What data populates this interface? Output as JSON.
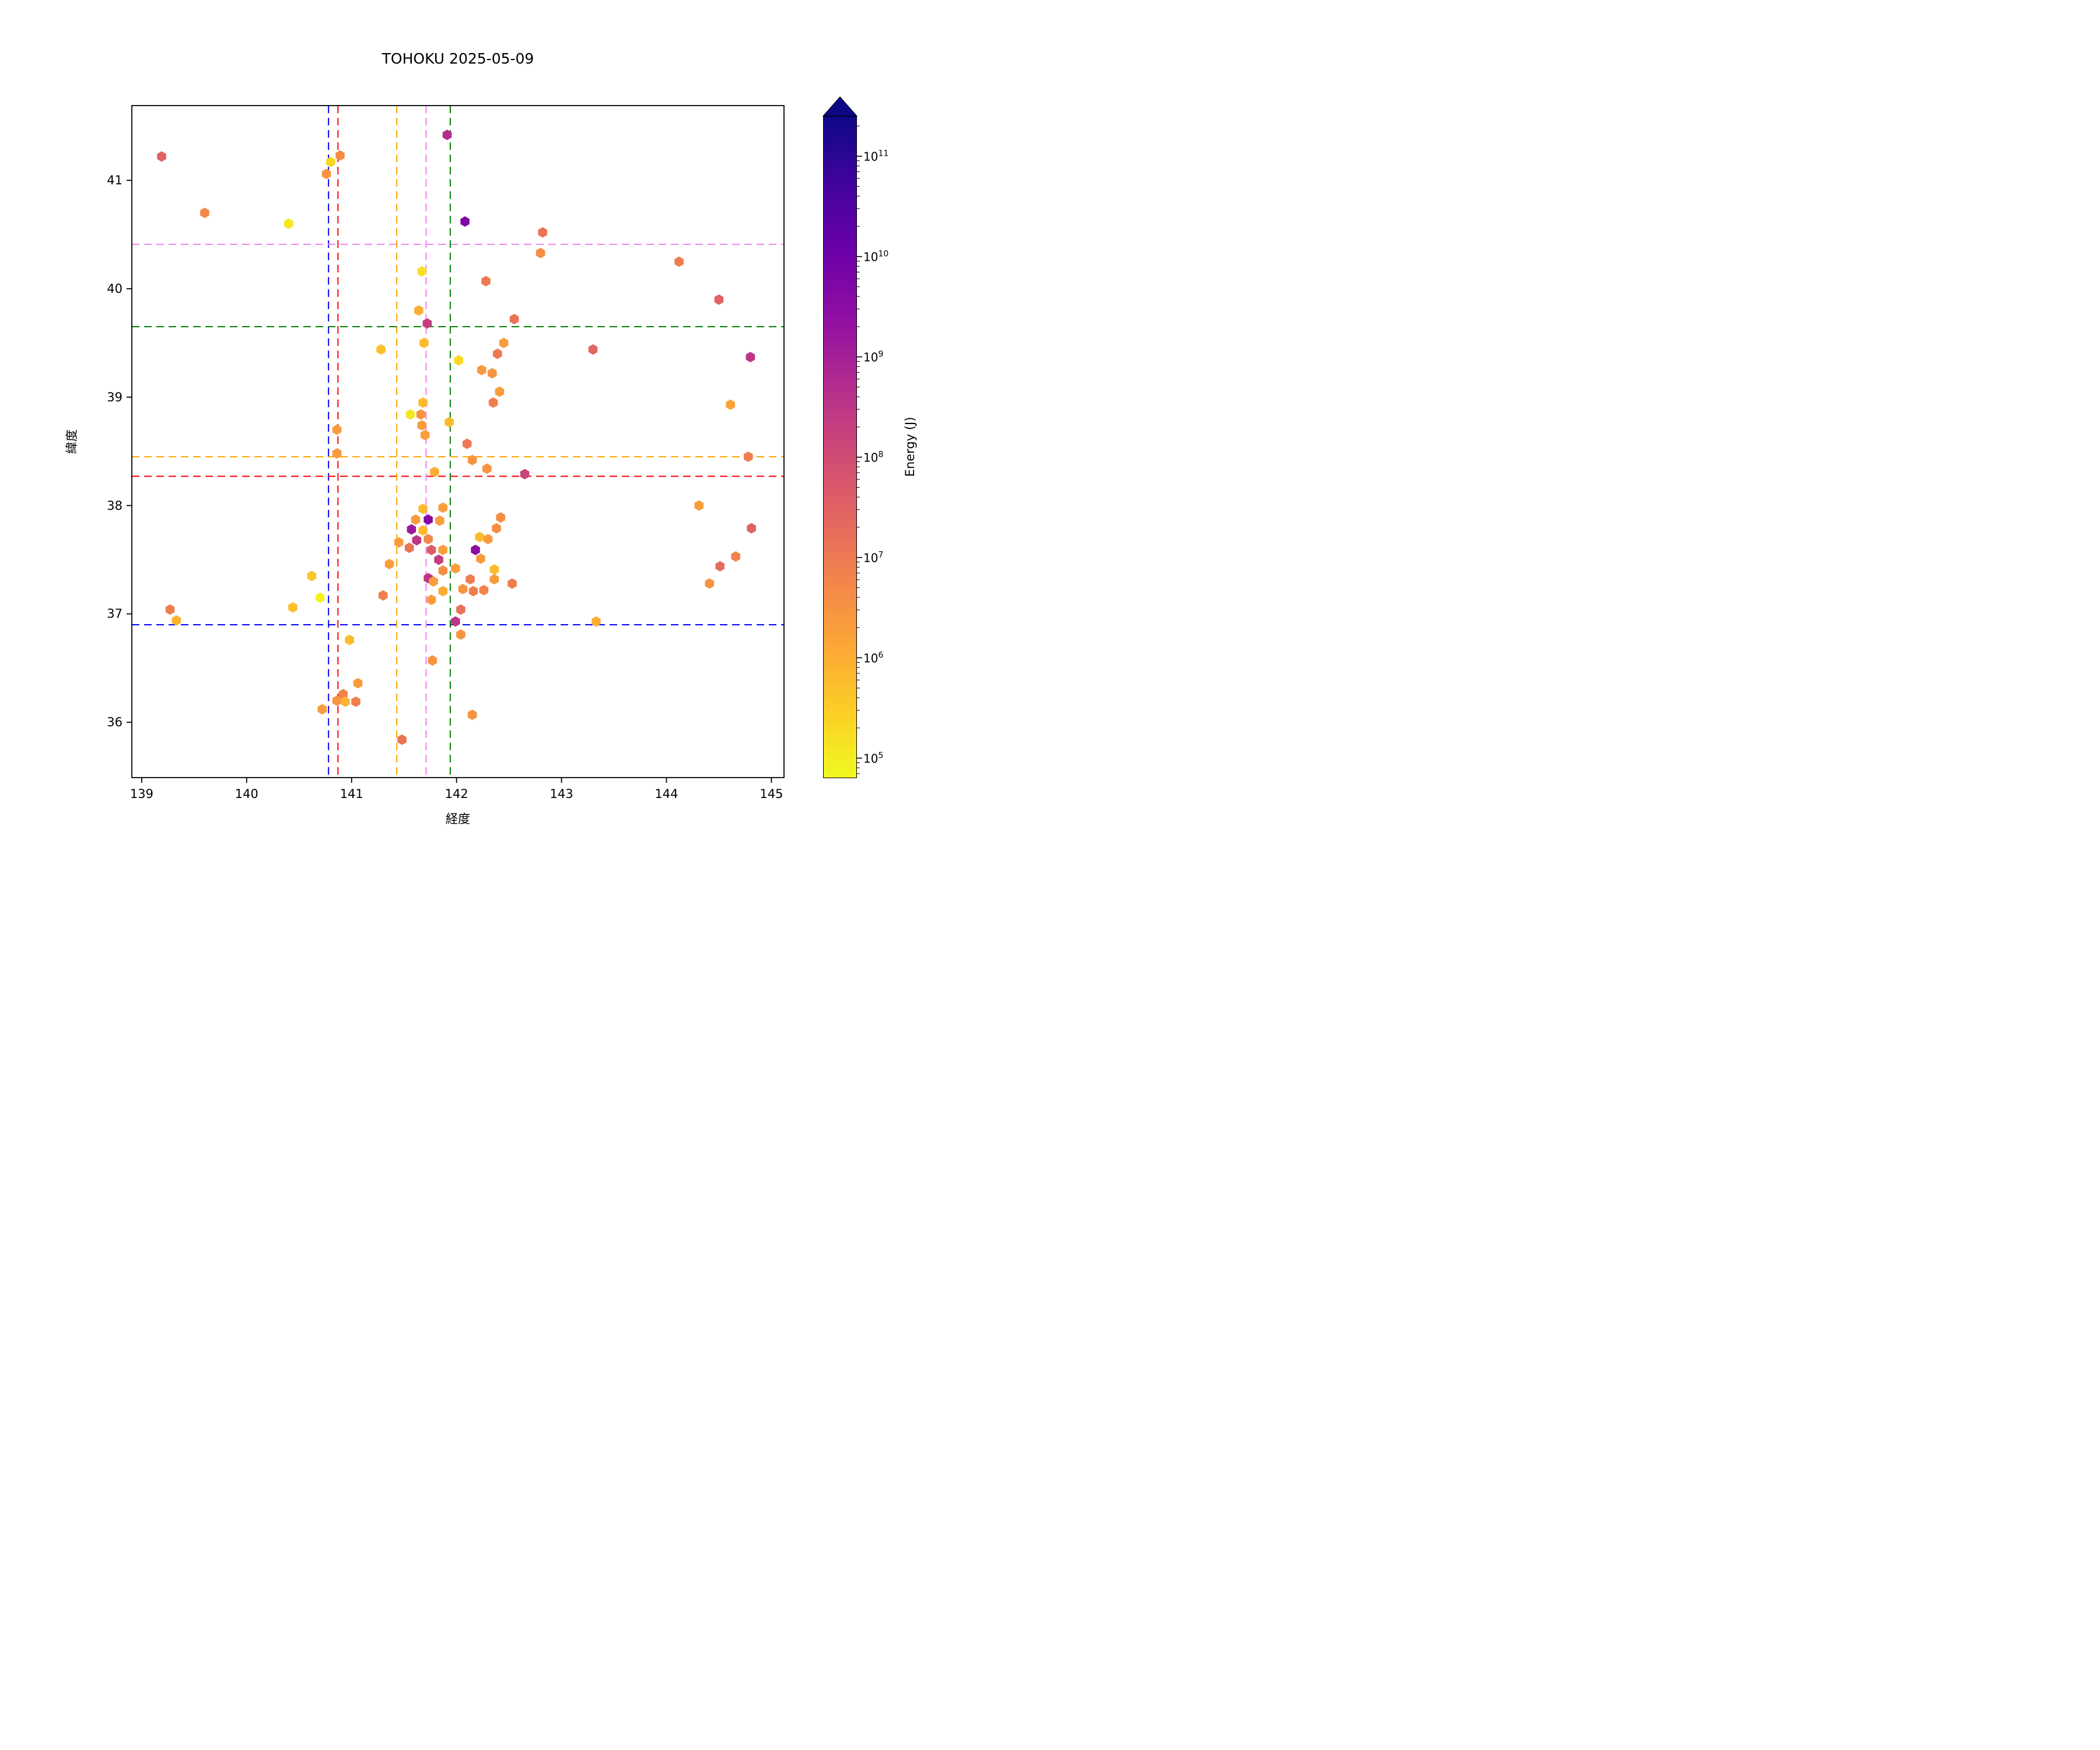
{
  "title": "TOHOKU 2025-05-09",
  "chart_data": {
    "type": "scatter",
    "marker": "hexagon",
    "title": "TOHOKU 2025-05-09",
    "xlabel": "経度",
    "ylabel": "緯度",
    "xlim": [
      138.906,
      145.12
    ],
    "ylim": [
      35.49,
      41.69
    ],
    "xticks": [
      139,
      140,
      141,
      142,
      143,
      144,
      145
    ],
    "yticks": [
      36,
      37,
      38,
      39,
      40,
      41
    ],
    "grid": false,
    "legend": "none",
    "colorbar": {
      "label": "Energy (J)",
      "scale": "log",
      "log10_min": 4.8,
      "log10_max": 11.4,
      "tick_exponents": [
        5,
        6,
        7,
        8,
        9,
        10,
        11
      ],
      "extend": "max",
      "colormap": "plasma_r",
      "plasma_anchors": [
        "#0d0887",
        "#41049d",
        "#6a00a8",
        "#8f0da4",
        "#b12a90",
        "#cc4778",
        "#e16462",
        "#f2844b",
        "#fca636",
        "#fcce25",
        "#f0f921"
      ]
    },
    "crosshairs": [
      {
        "name": "blue",
        "color": "#0000ff",
        "longitude": 140.78,
        "latitude": 36.9
      },
      {
        "name": "red",
        "color": "#ff0000",
        "longitude": 140.87,
        "latitude": 38.27
      },
      {
        "name": "orange",
        "color": "#ffa500",
        "longitude": 141.43,
        "latitude": 38.45
      },
      {
        "name": "violet",
        "color": "#ee82ee",
        "longitude": 141.71,
        "latitude": 40.41
      },
      {
        "name": "green",
        "color": "#008000",
        "longitude": 141.94,
        "latitude": 39.65
      }
    ],
    "points_columns": [
      "longitude",
      "latitude",
      "energy_j"
    ],
    "points": [
      [
        139.19,
        41.22,
        30000000.0
      ],
      [
        140.8,
        41.17,
        200000.0
      ],
      [
        140.89,
        41.23,
        4000000.0
      ],
      [
        140.76,
        41.06,
        3000000.0
      ],
      [
        139.6,
        40.7,
        5000000.0
      ],
      [
        140.4,
        40.6,
        120000.0
      ],
      [
        141.91,
        41.42,
        500000000.0
      ],
      [
        142.08,
        40.62,
        5000000000.0
      ],
      [
        142.82,
        40.52,
        12000000.0
      ],
      [
        142.8,
        40.33,
        4000000.0
      ],
      [
        144.12,
        40.25,
        8000000.0
      ],
      [
        142.28,
        40.07,
        10000000.0
      ],
      [
        144.5,
        39.9,
        30000000.0
      ],
      [
        141.67,
        40.16,
        150000.0
      ],
      [
        141.64,
        39.8,
        1000000.0
      ],
      [
        141.72,
        39.68,
        200000000.0
      ],
      [
        142.55,
        39.72,
        12000000.0
      ],
      [
        141.69,
        39.5,
        600000.0
      ],
      [
        141.28,
        39.44,
        500000.0
      ],
      [
        142.02,
        39.34,
        200000.0
      ],
      [
        142.24,
        39.25,
        2500000.0
      ],
      [
        142.34,
        39.22,
        3000000.0
      ],
      [
        142.45,
        39.5,
        2000000.0
      ],
      [
        142.39,
        39.4,
        10000000.0
      ],
      [
        143.3,
        39.44,
        25000000.0
      ],
      [
        144.8,
        39.37,
        300000000.0
      ],
      [
        141.93,
        38.77,
        600000.0
      ],
      [
        141.68,
        38.95,
        600000.0
      ],
      [
        141.56,
        38.84,
        120000.0
      ],
      [
        141.66,
        38.84,
        3000000.0
      ],
      [
        141.67,
        38.74,
        2000000.0
      ],
      [
        141.7,
        38.65,
        2000000.0
      ],
      [
        140.86,
        38.7,
        2000000.0
      ],
      [
        140.86,
        38.48,
        2500000.0
      ],
      [
        142.41,
        39.05,
        2000000.0
      ],
      [
        142.35,
        38.95,
        8000000.0
      ],
      [
        142.1,
        38.57,
        10000000.0
      ],
      [
        142.15,
        38.42,
        3000000.0
      ],
      [
        142.29,
        38.34,
        3000000.0
      ],
      [
        141.79,
        38.31,
        1000000.0
      ],
      [
        142.65,
        38.29,
        150000000.0
      ],
      [
        144.61,
        38.93,
        1500000.0
      ],
      [
        144.78,
        38.45,
        8000000.0
      ],
      [
        144.31,
        38.0,
        2000000.0
      ],
      [
        141.68,
        37.97,
        600000.0
      ],
      [
        141.87,
        37.98,
        2000000.0
      ],
      [
        141.61,
        37.87,
        2000000.0
      ],
      [
        141.73,
        37.87,
        4000000000.0
      ],
      [
        141.84,
        37.86,
        2000000.0
      ],
      [
        141.57,
        37.78,
        1500000000.0
      ],
      [
        141.68,
        37.77,
        600000.0
      ],
      [
        141.62,
        37.68,
        300000000.0
      ],
      [
        141.73,
        37.69,
        5000000.0
      ],
      [
        141.45,
        37.66,
        2000000.0
      ],
      [
        141.55,
        37.61,
        12000000.0
      ],
      [
        141.76,
        37.59,
        40000000.0
      ],
      [
        141.87,
        37.59,
        2000000.0
      ],
      [
        141.83,
        37.5,
        200000000.0
      ],
      [
        141.87,
        37.4,
        4000000.0
      ],
      [
        141.99,
        37.42,
        2000000.0
      ],
      [
        141.73,
        37.33,
        300000000.0
      ],
      [
        141.78,
        37.3,
        2000000.0
      ],
      [
        141.87,
        37.21,
        1000000.0
      ],
      [
        141.76,
        37.13,
        2000000.0
      ],
      [
        142.42,
        37.89,
        4000000.0
      ],
      [
        142.38,
        37.79,
        4000000.0
      ],
      [
        142.22,
        37.71,
        600000.0
      ],
      [
        142.3,
        37.69,
        2000000.0
      ],
      [
        142.18,
        37.59,
        3000000000.0
      ],
      [
        142.23,
        37.51,
        2000000.0
      ],
      [
        142.13,
        37.32,
        8000000.0
      ],
      [
        142.36,
        37.41,
        600000.0
      ],
      [
        142.36,
        37.32,
        2000000.0
      ],
      [
        142.53,
        37.28,
        8000000.0
      ],
      [
        141.36,
        37.46,
        2000000.0
      ],
      [
        141.3,
        37.17,
        8000000.0
      ],
      [
        142.06,
        37.23,
        3000000.0
      ],
      [
        142.16,
        37.21,
        8000000.0
      ],
      [
        142.26,
        37.22,
        6000000.0
      ],
      [
        142.04,
        37.04,
        15000000.0
      ],
      [
        141.99,
        36.93,
        300000000.0
      ],
      [
        142.04,
        36.81,
        3000000.0
      ],
      [
        143.33,
        36.93,
        1000000.0
      ],
      [
        139.27,
        37.04,
        8000000.0
      ],
      [
        139.33,
        36.94,
        800000.0
      ],
      [
        140.44,
        37.06,
        500000.0
      ],
      [
        140.7,
        37.15,
        80000.0
      ],
      [
        140.62,
        37.35,
        400000.0
      ],
      [
        140.98,
        36.76,
        600000.0
      ],
      [
        141.77,
        36.57,
        3000000.0
      ],
      [
        141.06,
        36.36,
        2000000.0
      ],
      [
        140.92,
        36.26,
        6000000.0
      ],
      [
        140.86,
        36.2,
        3000000.0
      ],
      [
        140.94,
        36.19,
        800000.0
      ],
      [
        141.04,
        36.19,
        8000000.0
      ],
      [
        140.72,
        36.12,
        2000000.0
      ],
      [
        141.48,
        35.84,
        12000000.0
      ],
      [
        142.15,
        36.07,
        3000000.0
      ],
      [
        144.81,
        37.79,
        30000000.0
      ],
      [
        144.66,
        37.53,
        6000000.0
      ],
      [
        144.51,
        37.44,
        20000000.0
      ],
      [
        144.41,
        37.28,
        3000000.0
      ]
    ]
  }
}
